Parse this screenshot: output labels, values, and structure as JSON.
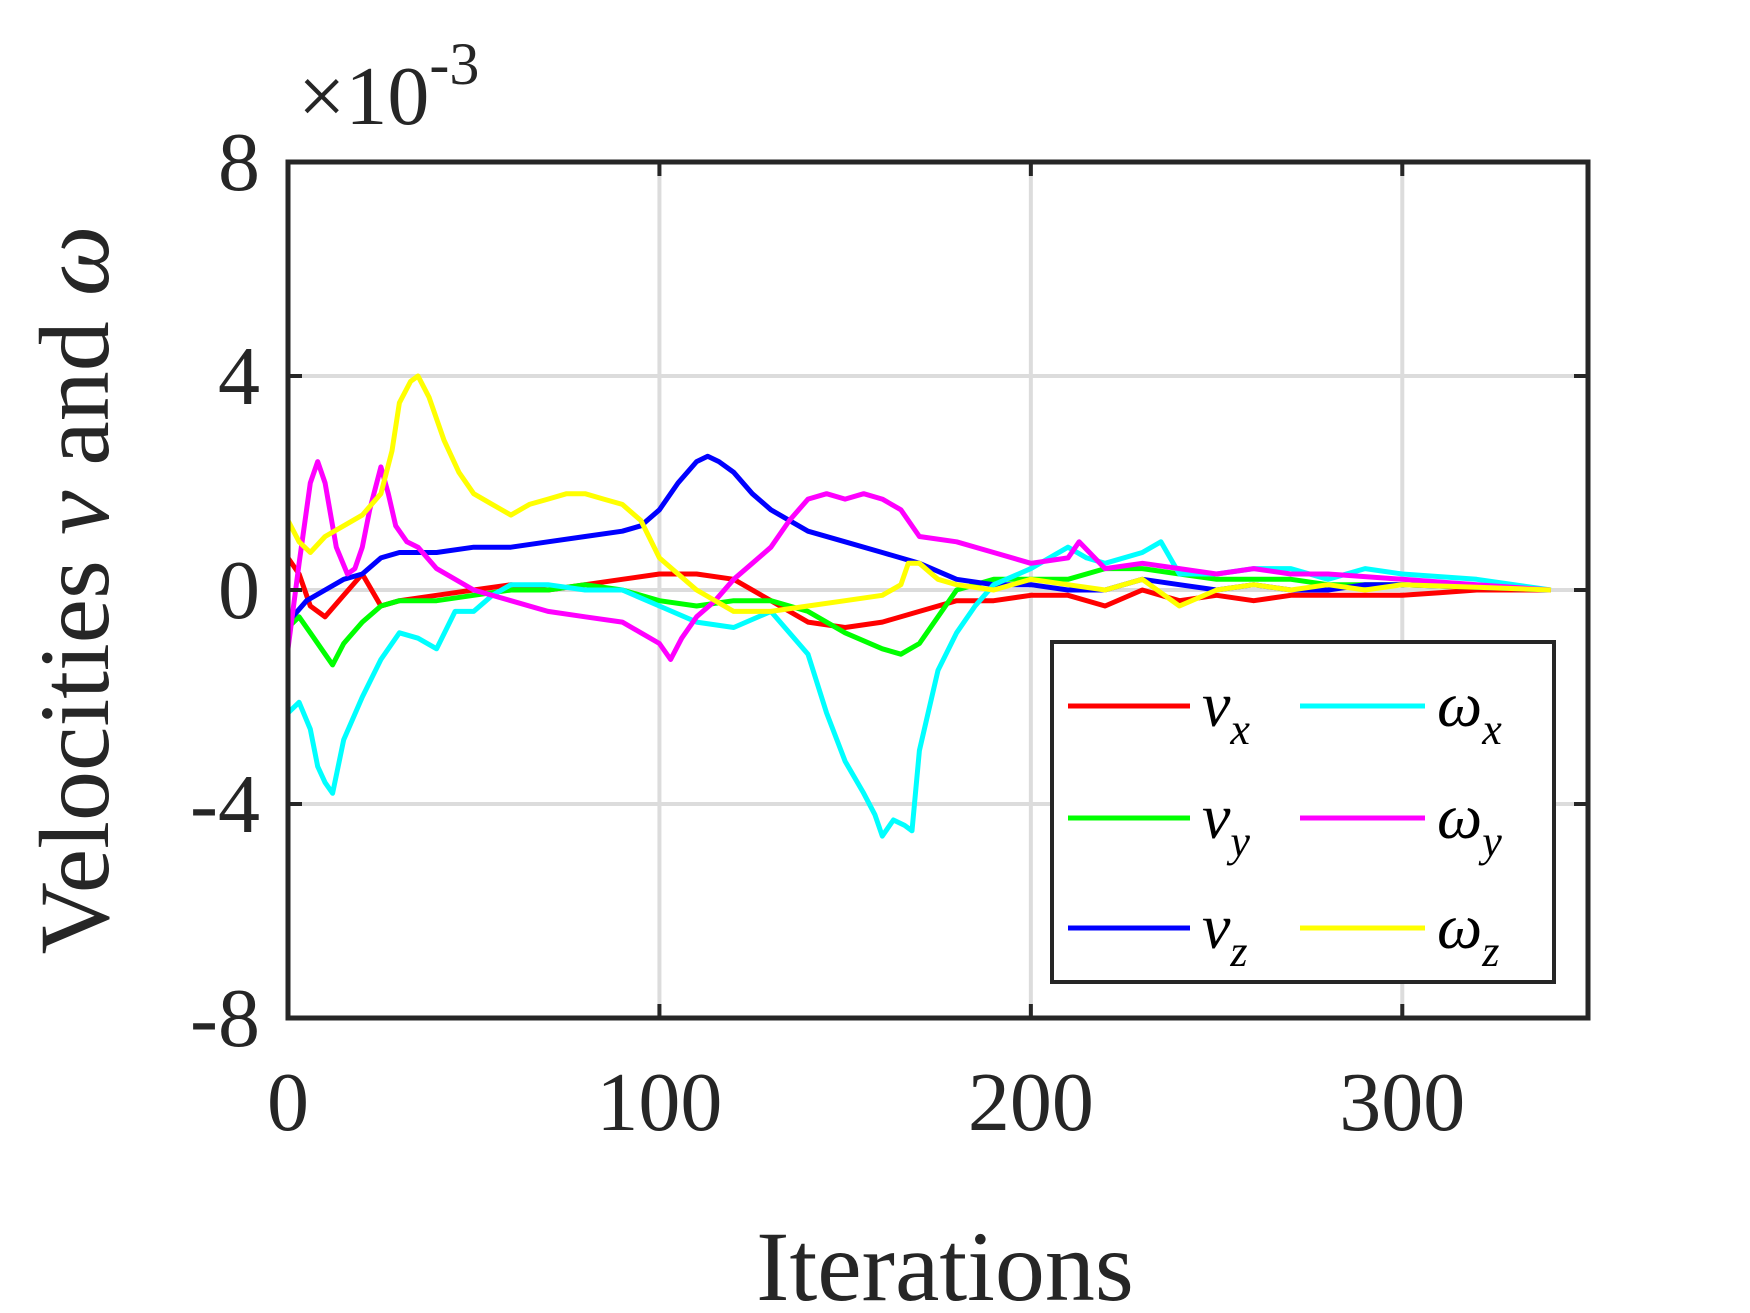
{
  "chart_data": {
    "type": "line",
    "xlabel": "Iterations",
    "ylabel_text": "Velocities",
    "ylabel_nu": "ν",
    "ylabel_and": "and",
    "ylabel_omega": "ω",
    "y_exponent_prefix": "×10",
    "y_exponent_power": "-3",
    "xlim": [
      0,
      350
    ],
    "ylim": [
      -8,
      8
    ],
    "xticks": [
      0,
      100,
      200,
      300
    ],
    "xtick_labels": [
      "0",
      "100",
      "200",
      "300"
    ],
    "yticks": [
      -8,
      -4,
      0,
      4,
      8
    ],
    "ytick_labels": [
      "-8",
      "-4",
      "0",
      "4",
      "8"
    ],
    "grid": true,
    "legend_location": "lower-right",
    "series": [
      {
        "name": "ν_x",
        "symbol": "ν",
        "sub": "x",
        "color": "#ff0000",
        "x": [
          0,
          3,
          6,
          10,
          15,
          20,
          25,
          30,
          40,
          50,
          60,
          70,
          80,
          90,
          100,
          110,
          120,
          130,
          140,
          150,
          160,
          170,
          180,
          190,
          200,
          210,
          220,
          230,
          240,
          250,
          260,
          270,
          280,
          290,
          300,
          310,
          320,
          330,
          340
        ],
        "values": [
          0.6,
          0.3,
          -0.3,
          -0.5,
          -0.1,
          0.3,
          -0.3,
          -0.2,
          -0.1,
          0.0,
          0.1,
          0.0,
          0.1,
          0.2,
          0.3,
          0.3,
          0.2,
          -0.2,
          -0.6,
          -0.7,
          -0.6,
          -0.4,
          -0.2,
          -0.2,
          -0.1,
          -0.1,
          -0.3,
          0.0,
          -0.2,
          -0.1,
          -0.2,
          -0.1,
          -0.1,
          -0.1,
          -0.1,
          -0.05,
          0.0,
          0.0,
          0.0
        ]
      },
      {
        "name": "ν_y",
        "symbol": "ν",
        "sub": "y",
        "color": "#00ff00",
        "x": [
          0,
          3,
          6,
          9,
          12,
          15,
          20,
          25,
          30,
          40,
          50,
          60,
          70,
          80,
          90,
          100,
          110,
          120,
          130,
          140,
          150,
          160,
          165,
          170,
          180,
          190,
          200,
          210,
          220,
          230,
          240,
          250,
          260,
          270,
          280,
          290,
          300,
          320,
          340
        ],
        "values": [
          -0.7,
          -0.5,
          -0.8,
          -1.1,
          -1.4,
          -1.0,
          -0.6,
          -0.3,
          -0.2,
          -0.2,
          -0.1,
          0.0,
          0.0,
          0.1,
          0.0,
          -0.2,
          -0.3,
          -0.2,
          -0.2,
          -0.4,
          -0.8,
          -1.1,
          -1.2,
          -1.0,
          0.0,
          0.2,
          0.2,
          0.2,
          0.4,
          0.4,
          0.3,
          0.2,
          0.2,
          0.2,
          0.1,
          0.1,
          0.1,
          0.05,
          0.0
        ]
      },
      {
        "name": "ν_z",
        "symbol": "ν",
        "sub": "z",
        "color": "#0000ff",
        "x": [
          0,
          5,
          10,
          15,
          20,
          25,
          30,
          40,
          50,
          60,
          70,
          80,
          90,
          95,
          100,
          105,
          110,
          113,
          116,
          120,
          125,
          130,
          140,
          150,
          160,
          170,
          180,
          190,
          200,
          210,
          220,
          230,
          240,
          250,
          260,
          270,
          280,
          290,
          300,
          320,
          340
        ],
        "values": [
          -0.6,
          -0.2,
          0.0,
          0.2,
          0.3,
          0.6,
          0.7,
          0.7,
          0.8,
          0.8,
          0.9,
          1.0,
          1.1,
          1.2,
          1.5,
          2.0,
          2.4,
          2.5,
          2.4,
          2.2,
          1.8,
          1.5,
          1.1,
          0.9,
          0.7,
          0.5,
          0.2,
          0.1,
          0.1,
          0.0,
          0.0,
          0.2,
          0.1,
          0.0,
          0.1,
          0.0,
          0.0,
          0.1,
          0.1,
          0.05,
          0.0
        ]
      },
      {
        "name": "ω_x",
        "symbol": "ω",
        "sub": "x",
        "color": "#00ffff",
        "x": [
          0,
          3,
          6,
          8,
          10,
          12,
          15,
          20,
          25,
          30,
          35,
          40,
          45,
          50,
          55,
          60,
          70,
          80,
          90,
          100,
          110,
          120,
          130,
          140,
          145,
          150,
          155,
          158,
          160,
          163,
          166,
          168,
          170,
          175,
          180,
          185,
          190,
          200,
          210,
          215,
          220,
          230,
          235,
          240,
          250,
          260,
          270,
          280,
          290,
          300,
          320,
          340
        ],
        "values": [
          -2.3,
          -2.1,
          -2.6,
          -3.3,
          -3.6,
          -3.8,
          -2.8,
          -2.0,
          -1.3,
          -0.8,
          -0.9,
          -1.1,
          -0.4,
          -0.4,
          -0.1,
          0.1,
          0.1,
          0.0,
          0.0,
          -0.3,
          -0.6,
          -0.7,
          -0.4,
          -1.2,
          -2.3,
          -3.2,
          -3.8,
          -4.2,
          -4.6,
          -4.3,
          -4.4,
          -4.5,
          -3.0,
          -1.5,
          -0.8,
          -0.3,
          0.1,
          0.4,
          0.8,
          0.6,
          0.5,
          0.7,
          0.9,
          0.3,
          0.3,
          0.4,
          0.4,
          0.2,
          0.4,
          0.3,
          0.2,
          0.0
        ]
      },
      {
        "name": "ω_y",
        "symbol": "ω",
        "sub": "y",
        "color": "#ff00ff",
        "x": [
          0,
          3,
          6,
          8,
          10,
          13,
          16,
          18,
          20,
          22,
          25,
          27,
          29,
          32,
          35,
          40,
          50,
          60,
          70,
          80,
          90,
          95,
          100,
          103,
          106,
          110,
          115,
          120,
          125,
          130,
          135,
          140,
          145,
          150,
          155,
          160,
          165,
          170,
          180,
          190,
          200,
          210,
          213,
          220,
          230,
          240,
          250,
          260,
          270,
          280,
          300,
          320,
          340
        ],
        "values": [
          -1.1,
          0.5,
          2.0,
          2.4,
          2.0,
          0.8,
          0.3,
          0.4,
          0.8,
          1.5,
          2.3,
          1.8,
          1.2,
          0.9,
          0.8,
          0.4,
          0.0,
          -0.2,
          -0.4,
          -0.5,
          -0.6,
          -0.8,
          -1.0,
          -1.3,
          -0.9,
          -0.5,
          -0.2,
          0.2,
          0.5,
          0.8,
          1.3,
          1.7,
          1.8,
          1.7,
          1.8,
          1.7,
          1.5,
          1.0,
          0.9,
          0.7,
          0.5,
          0.6,
          0.9,
          0.4,
          0.5,
          0.4,
          0.3,
          0.4,
          0.3,
          0.3,
          0.2,
          0.1,
          0.0
        ]
      },
      {
        "name": "ω_z",
        "symbol": "ω",
        "sub": "z",
        "color": "#ffff00",
        "x": [
          0,
          3,
          6,
          10,
          15,
          20,
          25,
          28,
          30,
          33,
          35,
          38,
          42,
          46,
          50,
          55,
          60,
          65,
          70,
          75,
          80,
          85,
          90,
          95,
          100,
          110,
          120,
          130,
          140,
          150,
          160,
          165,
          167,
          170,
          175,
          180,
          190,
          200,
          210,
          220,
          230,
          240,
          250,
          260,
          270,
          280,
          290,
          300,
          320,
          340
        ],
        "values": [
          1.3,
          0.9,
          0.7,
          1.0,
          1.2,
          1.4,
          1.8,
          2.6,
          3.5,
          3.9,
          4.0,
          3.6,
          2.8,
          2.2,
          1.8,
          1.6,
          1.4,
          1.6,
          1.7,
          1.8,
          1.8,
          1.7,
          1.6,
          1.3,
          0.6,
          0.0,
          -0.4,
          -0.4,
          -0.3,
          -0.2,
          -0.1,
          0.1,
          0.5,
          0.5,
          0.2,
          0.1,
          0.0,
          0.2,
          0.1,
          0.0,
          0.2,
          -0.3,
          0.0,
          0.1,
          0.0,
          0.1,
          0.0,
          0.1,
          0.05,
          0.0
        ]
      }
    ]
  }
}
